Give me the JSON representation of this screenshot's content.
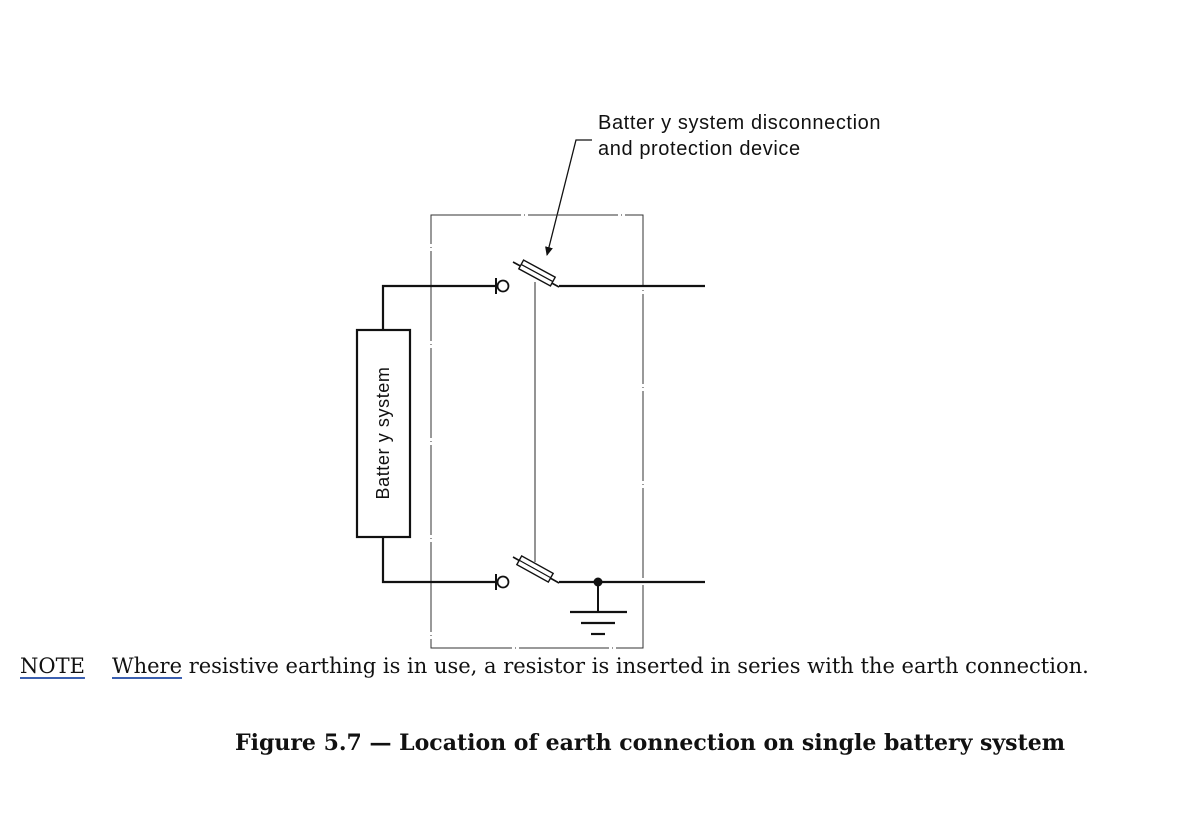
{
  "diagram": {
    "callout_line1": "Batter y system disconnection",
    "callout_line2": "and protection device",
    "battery_label": "Batter y system"
  },
  "note": {
    "label": "NOTE",
    "word": "Where",
    "text": " resistive earthing is in use, a resistor is inserted in series with the earth connection."
  },
  "caption": {
    "text": "Figure 5.7 — Location of earth connection on single battery system"
  }
}
